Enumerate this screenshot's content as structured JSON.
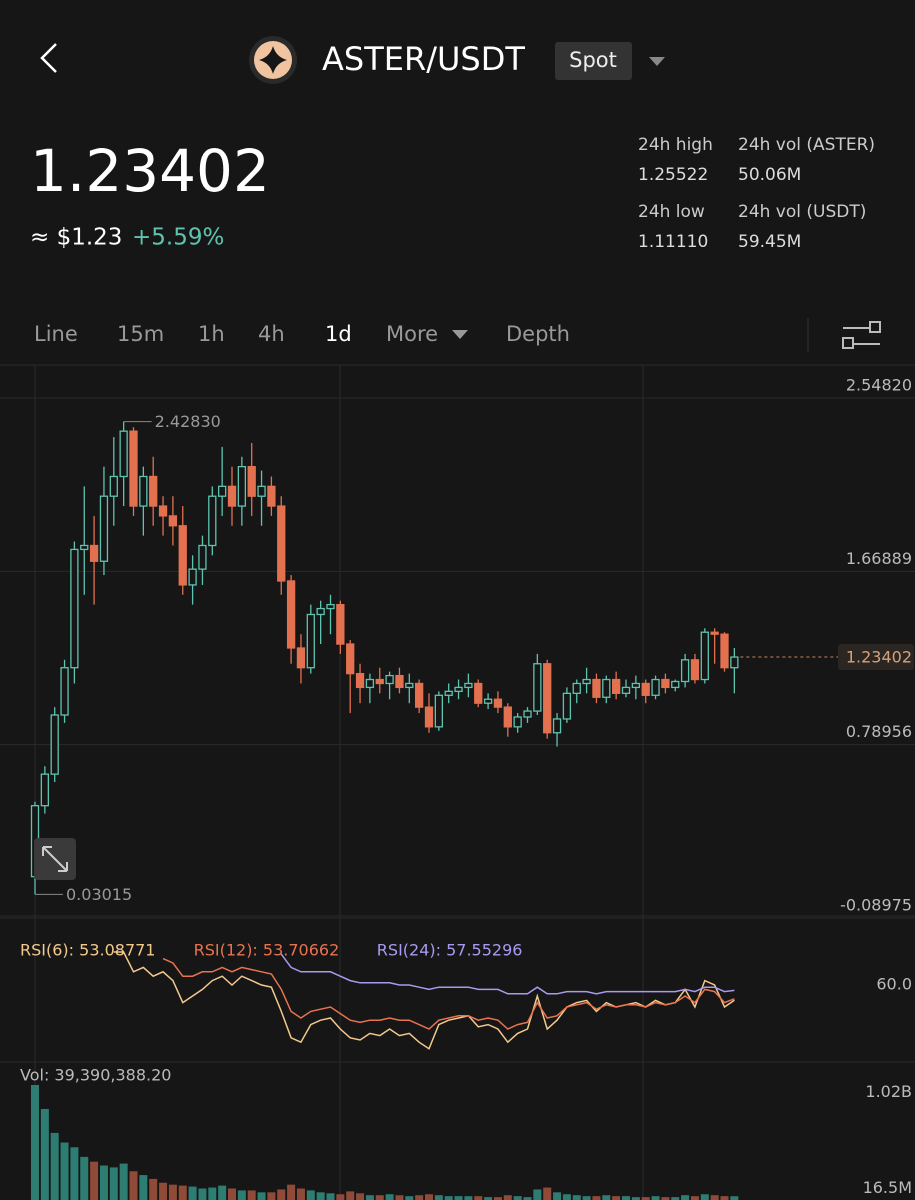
{
  "header": {
    "pair": "ASTER/USDT",
    "market": "Spot",
    "price": "1.23402",
    "fiat_price": "≈ $1.23",
    "change": "+5.59%",
    "stats": [
      {
        "label": "24h high",
        "value": "1.25522"
      },
      {
        "label": "24h vol (ASTER)",
        "value": "50.06M"
      },
      {
        "label": "24h low",
        "value": "1.11110"
      },
      {
        "label": "24h vol (USDT)",
        "value": "59.45M"
      }
    ],
    "tabs": [
      "Line",
      "15m",
      "1h",
      "4h",
      "1d",
      "More",
      "Depth"
    ]
  },
  "chart_data": [
    {
      "type": "candlestick",
      "up_color": "#5ec4b0",
      "down_color": "#e3704f",
      "ylim": [
        -0.08975,
        2.5482
      ],
      "yticks": [
        {
          "value": 2.5482,
          "label": "2.54820"
        },
        1.66889,
        0.78956,
        -0.08975
      ],
      "grid": true,
      "last_price": 1.23402,
      "max_label": {
        "value": 2.4283,
        "label": "2.42830"
      },
      "min_label": 0.03015,
      "candles": [
        [
          0.12,
          0.5,
          0.03015,
          0.48
        ],
        [
          0.48,
          0.68,
          0.44,
          0.64
        ],
        [
          0.64,
          0.98,
          0.6,
          0.94
        ],
        [
          0.94,
          1.22,
          0.9,
          1.18
        ],
        [
          1.18,
          1.82,
          1.1,
          1.78
        ],
        [
          1.78,
          2.1,
          1.55,
          1.8
        ],
        [
          1.8,
          1.95,
          1.5,
          1.72
        ],
        [
          1.72,
          2.2,
          1.65,
          2.05
        ],
        [
          2.05,
          2.35,
          1.9,
          2.15
        ],
        [
          2.15,
          2.4283,
          2.0,
          2.38
        ],
        [
          2.38,
          2.4,
          1.95,
          2.0
        ],
        [
          2.0,
          2.2,
          1.85,
          2.15
        ],
        [
          2.15,
          2.25,
          1.9,
          2.0
        ],
        [
          2.0,
          2.05,
          1.85,
          1.95
        ],
        [
          1.95,
          2.05,
          1.8,
          1.9
        ],
        [
          1.9,
          2.0,
          1.55,
          1.6
        ],
        [
          1.6,
          1.75,
          1.5,
          1.68
        ],
        [
          1.68,
          1.85,
          1.6,
          1.8
        ],
        [
          1.8,
          2.1,
          1.75,
          2.05
        ],
        [
          2.05,
          2.3,
          1.95,
          2.1
        ],
        [
          2.1,
          2.2,
          1.9,
          2.0
        ],
        [
          2.0,
          2.25,
          1.9,
          2.2
        ],
        [
          2.2,
          2.32,
          1.95,
          2.05
        ],
        [
          2.05,
          2.18,
          1.9,
          2.1
        ],
        [
          2.1,
          2.15,
          1.95,
          2.0
        ],
        [
          2.0,
          2.05,
          1.55,
          1.62
        ],
        [
          1.62,
          1.65,
          1.2,
          1.28
        ],
        [
          1.28,
          1.35,
          1.1,
          1.18
        ],
        [
          1.18,
          1.5,
          1.15,
          1.45
        ],
        [
          1.45,
          1.52,
          1.3,
          1.48
        ],
        [
          1.48,
          1.55,
          1.35,
          1.5
        ],
        [
          1.5,
          1.52,
          1.25,
          1.3
        ],
        [
          1.3,
          1.32,
          0.95,
          1.15
        ],
        [
          1.15,
          1.2,
          1.0,
          1.08
        ],
        [
          1.08,
          1.15,
          1.0,
          1.12
        ],
        [
          1.12,
          1.18,
          1.05,
          1.1
        ],
        [
          1.1,
          1.16,
          1.02,
          1.14
        ],
        [
          1.14,
          1.18,
          1.05,
          1.08
        ],
        [
          1.08,
          1.15,
          1.0,
          1.1
        ],
        [
          1.1,
          1.12,
          0.95,
          0.98
        ],
        [
          0.98,
          1.05,
          0.85,
          0.88
        ],
        [
          0.88,
          1.06,
          0.86,
          1.04
        ],
        [
          1.04,
          1.1,
          1.0,
          1.06
        ],
        [
          1.06,
          1.12,
          1.02,
          1.08
        ],
        [
          1.08,
          1.15,
          1.03,
          1.1
        ],
        [
          1.1,
          1.12,
          0.98,
          1.0
        ],
        [
          1.0,
          1.05,
          0.97,
          1.02
        ],
        [
          1.02,
          1.06,
          0.95,
          0.98
        ],
        [
          0.98,
          1.0,
          0.83,
          0.88
        ],
        [
          0.88,
          0.95,
          0.85,
          0.93
        ],
        [
          0.93,
          0.98,
          0.9,
          0.96
        ],
        [
          0.96,
          1.25,
          0.94,
          1.2
        ],
        [
          1.2,
          1.22,
          0.82,
          0.85
        ],
        [
          0.85,
          0.95,
          0.78,
          0.92
        ],
        [
          0.92,
          1.08,
          0.9,
          1.05
        ],
        [
          1.05,
          1.12,
          1.0,
          1.1
        ],
        [
          1.1,
          1.18,
          1.05,
          1.12
        ],
        [
          1.12,
          1.15,
          1.0,
          1.03
        ],
        [
          1.03,
          1.14,
          1.0,
          1.12
        ],
        [
          1.12,
          1.16,
          1.02,
          1.05
        ],
        [
          1.05,
          1.12,
          1.03,
          1.08
        ],
        [
          1.08,
          1.14,
          1.02,
          1.1
        ],
        [
          1.1,
          1.12,
          1.0,
          1.04
        ],
        [
          1.04,
          1.14,
          1.02,
          1.12
        ],
        [
          1.12,
          1.15,
          1.05,
          1.08
        ],
        [
          1.08,
          1.12,
          1.06,
          1.11
        ],
        [
          1.11,
          1.25,
          1.08,
          1.22
        ],
        [
          1.22,
          1.25,
          1.1,
          1.12
        ],
        [
          1.12,
          1.38,
          1.1,
          1.36
        ],
        [
          1.36,
          1.38,
          1.2,
          1.35
        ],
        [
          1.35,
          1.36,
          1.16,
          1.18
        ],
        [
          1.18,
          1.28,
          1.05,
          1.23402
        ]
      ]
    },
    {
      "type": "line",
      "ylim": [
        25,
        85
      ],
      "yticks": [
        {
          "value": 60,
          "label": "60.0"
        }
      ],
      "series": [
        {
          "name": "RSI(6)",
          "label": "RSI(6): 53.08771",
          "color": "#f3c98c",
          "values": [
            null,
            null,
            null,
            null,
            null,
            null,
            null,
            null,
            75,
            75,
            66,
            68,
            64,
            66,
            62,
            52,
            55,
            58,
            62,
            64,
            60,
            64,
            62,
            60,
            59,
            48,
            36,
            34,
            42,
            44,
            45,
            40,
            36,
            35,
            38,
            37,
            40,
            37,
            38,
            34,
            31,
            42,
            44,
            45,
            46,
            41,
            42,
            40,
            34,
            38,
            40,
            55,
            40,
            44,
            50,
            52,
            53,
            48,
            52,
            50,
            51,
            52,
            50,
            53,
            51,
            52,
            58,
            50,
            62,
            60,
            50,
            53.08771
          ]
        },
        {
          "name": "RSI(12)",
          "label": "RSI(12): 53.70662",
          "color": "#e8734f",
          "values": [
            null,
            null,
            null,
            null,
            null,
            null,
            null,
            null,
            null,
            null,
            null,
            null,
            null,
            72,
            70,
            64,
            64,
            66,
            66,
            68,
            66,
            68,
            67,
            66,
            65,
            58,
            48,
            45,
            48,
            49,
            50,
            47,
            44,
            43,
            44,
            44,
            45,
            44,
            44,
            42,
            40,
            44,
            45,
            46,
            46,
            44,
            45,
            44,
            40,
            42,
            43,
            52,
            45,
            46,
            50,
            51,
            52,
            49,
            51,
            50,
            51,
            51,
            50,
            52,
            51,
            52,
            55,
            52,
            58,
            57,
            52,
            53.70662
          ]
        },
        {
          "name": "RSI(24)",
          "label": "RSI(24): 57.55296",
          "color": "#a99af0",
          "values": [
            null,
            null,
            null,
            null,
            null,
            null,
            null,
            null,
            null,
            null,
            null,
            null,
            null,
            null,
            null,
            null,
            null,
            null,
            null,
            null,
            null,
            null,
            null,
            null,
            null,
            74,
            68,
            66,
            66,
            66,
            66,
            64,
            62,
            61,
            61,
            61,
            61,
            60,
            60,
            59,
            58,
            59,
            59,
            59,
            59,
            58,
            58,
            58,
            56,
            56,
            56,
            59,
            56,
            56,
            57,
            57,
            57,
            56,
            57,
            57,
            57,
            57,
            57,
            57,
            57,
            57,
            58,
            57,
            59,
            59,
            57,
            57.55296
          ]
        }
      ]
    },
    {
      "type": "bar",
      "label": "Vol: 39,390,388.20",
      "up_color": "#2e7d73",
      "down_color": "#8f4a38",
      "ylim": [
        0,
        1200000000
      ],
      "yticks": [
        {
          "value": 1020000000,
          "label": "1.02B"
        },
        {
          "value": 16500000,
          "label": "16.5M"
        }
      ],
      "values": [
        1200000000,
        950000000,
        700000000,
        600000000,
        550000000,
        450000000,
        400000000,
        360000000,
        340000000,
        380000000,
        300000000,
        260000000,
        220000000,
        180000000,
        160000000,
        150000000,
        140000000,
        120000000,
        130000000,
        150000000,
        120000000,
        100000000,
        100000000,
        80000000,
        80000000,
        110000000,
        160000000,
        120000000,
        100000000,
        80000000,
        70000000,
        60000000,
        90000000,
        70000000,
        50000000,
        50000000,
        60000000,
        50000000,
        40000000,
        50000000,
        60000000,
        50000000,
        40000000,
        40000000,
        40000000,
        40000000,
        30000000,
        30000000,
        50000000,
        40000000,
        30000000,
        110000000,
        130000000,
        80000000,
        60000000,
        50000000,
        40000000,
        40000000,
        50000000,
        40000000,
        40000000,
        30000000,
        30000000,
        40000000,
        30000000,
        30000000,
        50000000,
        40000000,
        60000000,
        50000000,
        40000000,
        39390388.2
      ]
    }
  ]
}
